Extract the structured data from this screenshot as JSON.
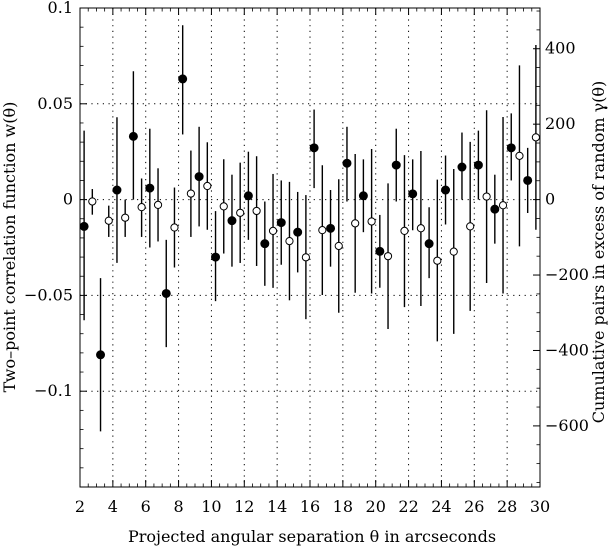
{
  "chart_data": {
    "type": "scatter",
    "xlabel": "Projected angular separation θ in arcseconds",
    "ylabel_left": "Two–point correlation function w(θ)",
    "ylabel_right": "Cumulative pairs in excess of random γ(θ)",
    "xlim": [
      2,
      30
    ],
    "ylim_left": [
      -0.15,
      0.1
    ],
    "ylim_right": [
      -762,
      508
    ],
    "x_ticks": [
      2,
      4,
      6,
      8,
      10,
      12,
      14,
      16,
      18,
      20,
      22,
      24,
      26,
      28,
      30
    ],
    "x_minor_ticks_step": 0.5,
    "y_left_ticks": [
      {
        "value": 0.1,
        "label": "0.1"
      },
      {
        "value": 0.05,
        "label": "0.05"
      },
      {
        "value": 0,
        "label": "0"
      },
      {
        "value": -0.05,
        "label": "−0.05"
      },
      {
        "value": -0.1,
        "label": "−0.1"
      }
    ],
    "y_right_ticks": [
      {
        "value": 400,
        "label": "400"
      },
      {
        "value": 200,
        "label": "200"
      },
      {
        "value": 0,
        "label": "0"
      },
      {
        "value": -200,
        "label": "−200"
      },
      {
        "value": -400,
        "label": "−400"
      },
      {
        "value": -600,
        "label": "−600"
      }
    ],
    "grid": "dotted",
    "series": [
      {
        "marker": "filled-circle",
        "axis": "left",
        "points": [
          {
            "x": 2.25,
            "y": -0.014,
            "lo": -0.063,
            "hi": 0.036
          },
          {
            "x": 3.25,
            "y": -0.081,
            "lo": -0.121,
            "hi": -0.041
          },
          {
            "x": 4.25,
            "y": 0.005,
            "lo": -0.033,
            "hi": 0.043
          },
          {
            "x": 5.25,
            "y": 0.033,
            "lo": 0.0,
            "hi": 0.067
          },
          {
            "x": 6.25,
            "y": 0.006,
            "lo": -0.025,
            "hi": 0.037
          },
          {
            "x": 7.25,
            "y": -0.049,
            "lo": -0.077,
            "hi": -0.021
          },
          {
            "x": 8.25,
            "y": 0.063,
            "lo": 0.034,
            "hi": 0.091
          },
          {
            "x": 9.25,
            "y": 0.012,
            "lo": -0.014,
            "hi": 0.038
          },
          {
            "x": 10.25,
            "y": -0.03,
            "lo": -0.053,
            "hi": -0.006
          },
          {
            "x": 11.25,
            "y": -0.011,
            "lo": -0.035,
            "hi": 0.013
          },
          {
            "x": 12.25,
            "y": 0.002,
            "lo": -0.021,
            "hi": 0.025
          },
          {
            "x": 13.25,
            "y": -0.023,
            "lo": -0.045,
            "hi": -0.001
          },
          {
            "x": 14.25,
            "y": -0.012,
            "lo": -0.034,
            "hi": 0.01
          },
          {
            "x": 15.25,
            "y": -0.017,
            "lo": -0.038,
            "hi": 0.004
          },
          {
            "x": 16.25,
            "y": 0.027,
            "lo": 0.006,
            "hi": 0.047
          },
          {
            "x": 17.25,
            "y": -0.015,
            "lo": -0.035,
            "hi": 0.005
          },
          {
            "x": 18.25,
            "y": 0.019,
            "lo": -0.001,
            "hi": 0.038
          },
          {
            "x": 19.25,
            "y": 0.002,
            "lo": -0.017,
            "hi": 0.021
          },
          {
            "x": 20.25,
            "y": -0.027,
            "lo": -0.046,
            "hi": -0.008
          },
          {
            "x": 21.25,
            "y": 0.018,
            "lo": -0.001,
            "hi": 0.037
          },
          {
            "x": 22.25,
            "y": 0.003,
            "lo": -0.016,
            "hi": 0.021
          },
          {
            "x": 23.25,
            "y": -0.023,
            "lo": -0.041,
            "hi": -0.004
          },
          {
            "x": 24.25,
            "y": 0.005,
            "lo": -0.013,
            "hi": 0.023
          },
          {
            "x": 25.25,
            "y": 0.017,
            "lo": 0.0,
            "hi": 0.035
          },
          {
            "x": 26.25,
            "y": 0.018,
            "lo": 0.0,
            "hi": 0.036
          },
          {
            "x": 27.25,
            "y": -0.005,
            "lo": -0.023,
            "hi": 0.013
          },
          {
            "x": 28.25,
            "y": 0.027,
            "lo": 0.01,
            "hi": 0.045
          },
          {
            "x": 29.25,
            "y": 0.01,
            "lo": -0.007,
            "hi": 0.027
          }
        ]
      },
      {
        "marker": "open-circle",
        "axis": "right",
        "points": [
          {
            "x": 2.75,
            "y": -5,
            "lo": -40,
            "hi": 28
          },
          {
            "x": 3.75,
            "y": -56,
            "lo": -99,
            "hi": -16
          },
          {
            "x": 4.75,
            "y": -48,
            "lo": -99,
            "hi": 0
          },
          {
            "x": 5.75,
            "y": -20,
            "lo": -99,
            "hi": 56
          },
          {
            "x": 6.75,
            "y": -14,
            "lo": -111,
            "hi": 83
          },
          {
            "x": 7.75,
            "y": -74,
            "lo": -180,
            "hi": 32
          },
          {
            "x": 8.75,
            "y": 16,
            "lo": -99,
            "hi": 130
          },
          {
            "x": 9.75,
            "y": 36,
            "lo": -80,
            "hi": 152
          },
          {
            "x": 10.75,
            "y": -18,
            "lo": -143,
            "hi": 107
          },
          {
            "x": 11.75,
            "y": -35,
            "lo": -168,
            "hi": 98
          },
          {
            "x": 12.75,
            "y": -30,
            "lo": -176,
            "hi": 115
          },
          {
            "x": 13.75,
            "y": -83,
            "lo": -234,
            "hi": 68
          },
          {
            "x": 14.75,
            "y": -110,
            "lo": -267,
            "hi": 47
          },
          {
            "x": 15.75,
            "y": -153,
            "lo": -317,
            "hi": 12
          },
          {
            "x": 16.75,
            "y": -81,
            "lo": -253,
            "hi": 91
          },
          {
            "x": 17.75,
            "y": -123,
            "lo": -300,
            "hi": 54
          },
          {
            "x": 18.75,
            "y": -63,
            "lo": -247,
            "hi": 121
          },
          {
            "x": 19.75,
            "y": -58,
            "lo": -249,
            "hi": 134
          },
          {
            "x": 20.75,
            "y": -150,
            "lo": -343,
            "hi": 43
          },
          {
            "x": 21.75,
            "y": -83,
            "lo": -285,
            "hi": 118
          },
          {
            "x": 22.75,
            "y": -76,
            "lo": -282,
            "hi": 129
          },
          {
            "x": 23.75,
            "y": -162,
            "lo": -376,
            "hi": 53
          },
          {
            "x": 24.75,
            "y": -138,
            "lo": -356,
            "hi": 81
          },
          {
            "x": 25.75,
            "y": -71,
            "lo": -295,
            "hi": 153
          },
          {
            "x": 26.75,
            "y": 8,
            "lo": -221,
            "hi": 237
          },
          {
            "x": 27.75,
            "y": -15,
            "lo": -249,
            "hi": 219
          },
          {
            "x": 28.75,
            "y": 116,
            "lo": -124,
            "hi": 356
          },
          {
            "x": 29.75,
            "y": 165,
            "lo": -80,
            "hi": 410
          }
        ]
      }
    ]
  }
}
